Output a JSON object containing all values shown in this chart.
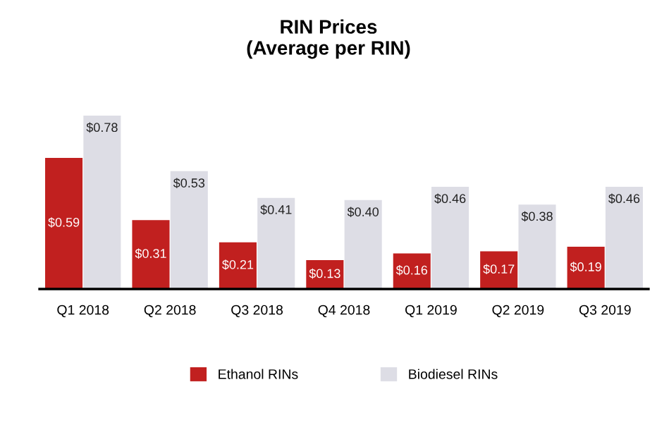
{
  "chart_data": {
    "type": "bar",
    "title": "RIN Prices\n(Average per RIN)",
    "categories": [
      "Q1 2018",
      "Q2 2018",
      "Q3 2018",
      "Q4 2018",
      "Q1 2019",
      "Q2 2019",
      "Q3 2019"
    ],
    "series": [
      {
        "name": "Ethanol RINs",
        "color": "#c1201f",
        "values": [
          0.59,
          0.31,
          0.21,
          0.13,
          0.16,
          0.17,
          0.19
        ],
        "value_labels": [
          "$0.59",
          "$0.31",
          "$0.21",
          "$0.13",
          "$0.16",
          "$0.17",
          "$0.19"
        ]
      },
      {
        "name": "Biodiesel RINs",
        "color": "#dddde5",
        "values": [
          0.78,
          0.53,
          0.41,
          0.4,
          0.46,
          0.38,
          0.46
        ],
        "value_labels": [
          "$0.78",
          "$0.53",
          "$0.41",
          "$0.40",
          "$0.46",
          "$0.38",
          "$0.46"
        ]
      }
    ],
    "legend": "bottom",
    "grid": false
  }
}
